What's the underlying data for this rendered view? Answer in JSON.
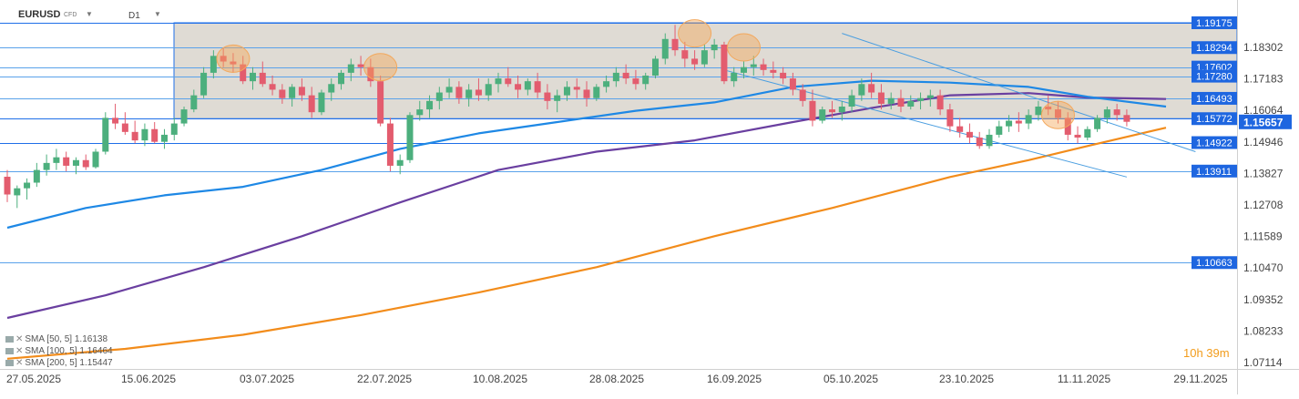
{
  "header": {
    "symbol": "EURUSD",
    "instrument_type": "CFD",
    "timeframe": "D1"
  },
  "timer": {
    "value": "10h 39m"
  },
  "legend": [
    {
      "label": "SMA [50, 5] 1.16138",
      "color": "#1e88e5"
    },
    {
      "label": "SMA [100, 5] 1.16464",
      "color": "#6a3fa0"
    },
    {
      "label": "SMA [200, 5] 1.15447",
      "color": "#f28c1b"
    }
  ],
  "chart_data": {
    "type": "candlestick",
    "ylim": [
      1.0657,
      1.1955
    ],
    "y_ticks": [
      "1.18302",
      "1.17183",
      "1.16064",
      "1.14946",
      "1.13827",
      "1.12708",
      "1.11589",
      "1.10470",
      "1.09352",
      "1.08233",
      "1.07114"
    ],
    "x_ticks": [
      "27.05.2025",
      "15.06.2025",
      "03.07.2025",
      "22.07.2025",
      "10.08.2025",
      "28.08.2025",
      "16.09.2025",
      "05.10.2025",
      "23.10.2025",
      "11.11.2025",
      "29.11.2025"
    ],
    "current_price": "1.15657",
    "horizontal_levels": [
      "1.19175",
      "1.18294",
      "1.17602",
      "1.17280",
      "1.16493",
      "1.15772",
      "1.14922",
      "1.13911",
      "1.10663"
    ],
    "colors": {
      "bull": "#4caf7d",
      "bear": "#e35c6e",
      "level": "#1f6fe8",
      "price_badge": "#1e66e0",
      "zone": "#d9d5cc",
      "sma50": "#1e88e5",
      "sma100": "#6a3fa0",
      "sma200": "#f28c1b",
      "highlight": "#f3a85c"
    },
    "ohlc": [
      [
        1.1371,
        1.1395,
        1.1281,
        1.1308
      ],
      [
        1.1305,
        1.134,
        1.126,
        1.133
      ],
      [
        1.133,
        1.1365,
        1.129,
        1.135
      ],
      [
        1.135,
        1.142,
        1.1335,
        1.1395
      ],
      [
        1.1395,
        1.145,
        1.1375,
        1.142
      ],
      [
        1.142,
        1.147,
        1.1395,
        1.144
      ],
      [
        1.144,
        1.146,
        1.139,
        1.141
      ],
      [
        1.141,
        1.144,
        1.138,
        1.143
      ],
      [
        1.143,
        1.145,
        1.1395,
        1.1405
      ],
      [
        1.1405,
        1.147,
        1.14,
        1.146
      ],
      [
        1.146,
        1.16,
        1.145,
        1.158
      ],
      [
        1.158,
        1.163,
        1.154,
        1.156
      ],
      [
        1.156,
        1.16,
        1.152,
        1.153
      ],
      [
        1.153,
        1.157,
        1.149,
        1.15
      ],
      [
        1.15,
        1.156,
        1.148,
        1.154
      ],
      [
        1.154,
        1.1565,
        1.149,
        1.1495
      ],
      [
        1.1495,
        1.154,
        1.147,
        1.152
      ],
      [
        1.152,
        1.158,
        1.15,
        1.156
      ],
      [
        1.156,
        1.162,
        1.155,
        1.161
      ],
      [
        1.161,
        1.168,
        1.16,
        1.166
      ],
      [
        1.166,
        1.176,
        1.165,
        1.174
      ],
      [
        1.174,
        1.182,
        1.172,
        1.18
      ],
      [
        1.18,
        1.183,
        1.176,
        1.178
      ],
      [
        1.178,
        1.181,
        1.174,
        1.177
      ],
      [
        1.177,
        1.18,
        1.17,
        1.171
      ],
      [
        1.171,
        1.176,
        1.168,
        1.174
      ],
      [
        1.174,
        1.178,
        1.169,
        1.17
      ],
      [
        1.17,
        1.173,
        1.166,
        1.168
      ],
      [
        1.168,
        1.17,
        1.163,
        1.165
      ],
      [
        1.165,
        1.17,
        1.162,
        1.169
      ],
      [
        1.169,
        1.172,
        1.164,
        1.166
      ],
      [
        1.166,
        1.169,
        1.158,
        1.16
      ],
      [
        1.16,
        1.168,
        1.159,
        1.167
      ],
      [
        1.167,
        1.172,
        1.164,
        1.17
      ],
      [
        1.17,
        1.175,
        1.168,
        1.174
      ],
      [
        1.174,
        1.179,
        1.171,
        1.177
      ],
      [
        1.177,
        1.18,
        1.173,
        1.176
      ],
      [
        1.176,
        1.179,
        1.169,
        1.171
      ],
      [
        1.171,
        1.173,
        1.155,
        1.156
      ],
      [
        1.156,
        1.158,
        1.139,
        1.141
      ],
      [
        1.141,
        1.145,
        1.138,
        1.143
      ],
      [
        1.143,
        1.16,
        1.142,
        1.159
      ],
      [
        1.159,
        1.164,
        1.157,
        1.161
      ],
      [
        1.161,
        1.166,
        1.158,
        1.164
      ],
      [
        1.164,
        1.169,
        1.161,
        1.167
      ],
      [
        1.167,
        1.172,
        1.165,
        1.169
      ],
      [
        1.169,
        1.171,
        1.163,
        1.165
      ],
      [
        1.165,
        1.17,
        1.162,
        1.168
      ],
      [
        1.168,
        1.172,
        1.164,
        1.166
      ],
      [
        1.166,
        1.172,
        1.164,
        1.17
      ],
      [
        1.17,
        1.174,
        1.167,
        1.172
      ],
      [
        1.172,
        1.176,
        1.169,
        1.17
      ],
      [
        1.17,
        1.173,
        1.165,
        1.168
      ],
      [
        1.168,
        1.172,
        1.166,
        1.171
      ],
      [
        1.171,
        1.174,
        1.165,
        1.167
      ],
      [
        1.167,
        1.17,
        1.161,
        1.164
      ],
      [
        1.164,
        1.168,
        1.16,
        1.166
      ],
      [
        1.166,
        1.171,
        1.164,
        1.169
      ],
      [
        1.169,
        1.172,
        1.165,
        1.168
      ],
      [
        1.168,
        1.171,
        1.162,
        1.165
      ],
      [
        1.165,
        1.17,
        1.164,
        1.169
      ],
      [
        1.169,
        1.173,
        1.167,
        1.171
      ],
      [
        1.171,
        1.176,
        1.169,
        1.174
      ],
      [
        1.174,
        1.177,
        1.17,
        1.172
      ],
      [
        1.172,
        1.175,
        1.168,
        1.17
      ],
      [
        1.17,
        1.174,
        1.168,
        1.173
      ],
      [
        1.173,
        1.18,
        1.172,
        1.179
      ],
      [
        1.179,
        1.188,
        1.177,
        1.186
      ],
      [
        1.186,
        1.191,
        1.18,
        1.182
      ],
      [
        1.182,
        1.185,
        1.176,
        1.179
      ],
      [
        1.179,
        1.182,
        1.175,
        1.177
      ],
      [
        1.177,
        1.184,
        1.176,
        1.182
      ],
      [
        1.182,
        1.186,
        1.179,
        1.184
      ],
      [
        1.184,
        1.185,
        1.17,
        1.171
      ],
      [
        1.171,
        1.176,
        1.169,
        1.174
      ],
      [
        1.174,
        1.178,
        1.172,
        1.176
      ],
      [
        1.176,
        1.18,
        1.173,
        1.177
      ],
      [
        1.177,
        1.179,
        1.173,
        1.175
      ],
      [
        1.175,
        1.178,
        1.172,
        1.174
      ],
      [
        1.174,
        1.176,
        1.17,
        1.172
      ],
      [
        1.172,
        1.174,
        1.166,
        1.168
      ],
      [
        1.168,
        1.17,
        1.162,
        1.164
      ],
      [
        1.164,
        1.168,
        1.155,
        1.157
      ],
      [
        1.157,
        1.162,
        1.156,
        1.161
      ],
      [
        1.161,
        1.164,
        1.158,
        1.16
      ],
      [
        1.16,
        1.164,
        1.157,
        1.162
      ],
      [
        1.162,
        1.168,
        1.16,
        1.166
      ],
      [
        1.166,
        1.172,
        1.164,
        1.17
      ],
      [
        1.17,
        1.174,
        1.165,
        1.167
      ],
      [
        1.167,
        1.17,
        1.161,
        1.163
      ],
      [
        1.163,
        1.167,
        1.161,
        1.165
      ],
      [
        1.165,
        1.168,
        1.16,
        1.162
      ],
      [
        1.162,
        1.166,
        1.161,
        1.164
      ],
      [
        1.164,
        1.167,
        1.161,
        1.165
      ],
      [
        1.165,
        1.168,
        1.162,
        1.166
      ],
      [
        1.166,
        1.168,
        1.159,
        1.161
      ],
      [
        1.161,
        1.163,
        1.153,
        1.155
      ],
      [
        1.155,
        1.158,
        1.151,
        1.153
      ],
      [
        1.153,
        1.156,
        1.149,
        1.151
      ],
      [
        1.151,
        1.153,
        1.147,
        1.148
      ],
      [
        1.148,
        1.154,
        1.147,
        1.152
      ],
      [
        1.152,
        1.157,
        1.151,
        1.155
      ],
      [
        1.155,
        1.159,
        1.153,
        1.157
      ],
      [
        1.157,
        1.16,
        1.153,
        1.156
      ],
      [
        1.156,
        1.161,
        1.154,
        1.159
      ],
      [
        1.159,
        1.164,
        1.157,
        1.162
      ],
      [
        1.162,
        1.166,
        1.159,
        1.161
      ],
      [
        1.161,
        1.164,
        1.156,
        1.158
      ],
      [
        1.158,
        1.16,
        1.15,
        1.152
      ],
      [
        1.152,
        1.155,
        1.149,
        1.151
      ],
      [
        1.151,
        1.155,
        1.15,
        1.154
      ],
      [
        1.154,
        1.159,
        1.153,
        1.158
      ],
      [
        1.158,
        1.162,
        1.156,
        1.161
      ],
      [
        1.161,
        1.163,
        1.157,
        1.159
      ],
      [
        1.159,
        1.161,
        1.155,
        1.1566
      ]
    ],
    "sma50": [
      [
        0,
        1.119
      ],
      [
        8,
        1.126
      ],
      [
        16,
        1.1305
      ],
      [
        24,
        1.1335
      ],
      [
        32,
        1.1395
      ],
      [
        40,
        1.147
      ],
      [
        48,
        1.1525
      ],
      [
        56,
        1.1565
      ],
      [
        64,
        1.1605
      ],
      [
        72,
        1.1635
      ],
      [
        80,
        1.169
      ],
      [
        88,
        1.1712
      ],
      [
        96,
        1.1705
      ],
      [
        104,
        1.169
      ],
      [
        110,
        1.1655
      ],
      [
        118,
        1.162
      ]
    ],
    "sma100": [
      [
        0,
        1.087
      ],
      [
        10,
        1.095
      ],
      [
        20,
        1.105
      ],
      [
        30,
        1.116
      ],
      [
        40,
        1.128
      ],
      [
        50,
        1.1395
      ],
      [
        60,
        1.146
      ],
      [
        70,
        1.15
      ],
      [
        80,
        1.1565
      ],
      [
        88,
        1.1615
      ],
      [
        96,
        1.166
      ],
      [
        104,
        1.1668
      ],
      [
        110,
        1.1652
      ],
      [
        118,
        1.1647
      ]
    ],
    "sma200": [
      [
        0,
        1.0725
      ],
      [
        12,
        1.076
      ],
      [
        24,
        1.081
      ],
      [
        36,
        1.088
      ],
      [
        48,
        1.096
      ],
      [
        60,
        1.105
      ],
      [
        72,
        1.116
      ],
      [
        84,
        1.126
      ],
      [
        96,
        1.137
      ],
      [
        104,
        1.143
      ],
      [
        110,
        1.148
      ],
      [
        118,
        1.1545
      ]
    ],
    "trendlines": [
      [
        [
          85,
          1.188
        ],
        [
          121,
          1.146
        ]
      ],
      [
        [
          73,
          1.175
        ],
        [
          114,
          1.137
        ]
      ]
    ],
    "highlight_circles": [
      [
        23,
        1.179
      ],
      [
        38,
        1.176
      ],
      [
        70,
        1.188
      ],
      [
        75,
        1.183
      ],
      [
        107,
        1.159
      ]
    ]
  }
}
